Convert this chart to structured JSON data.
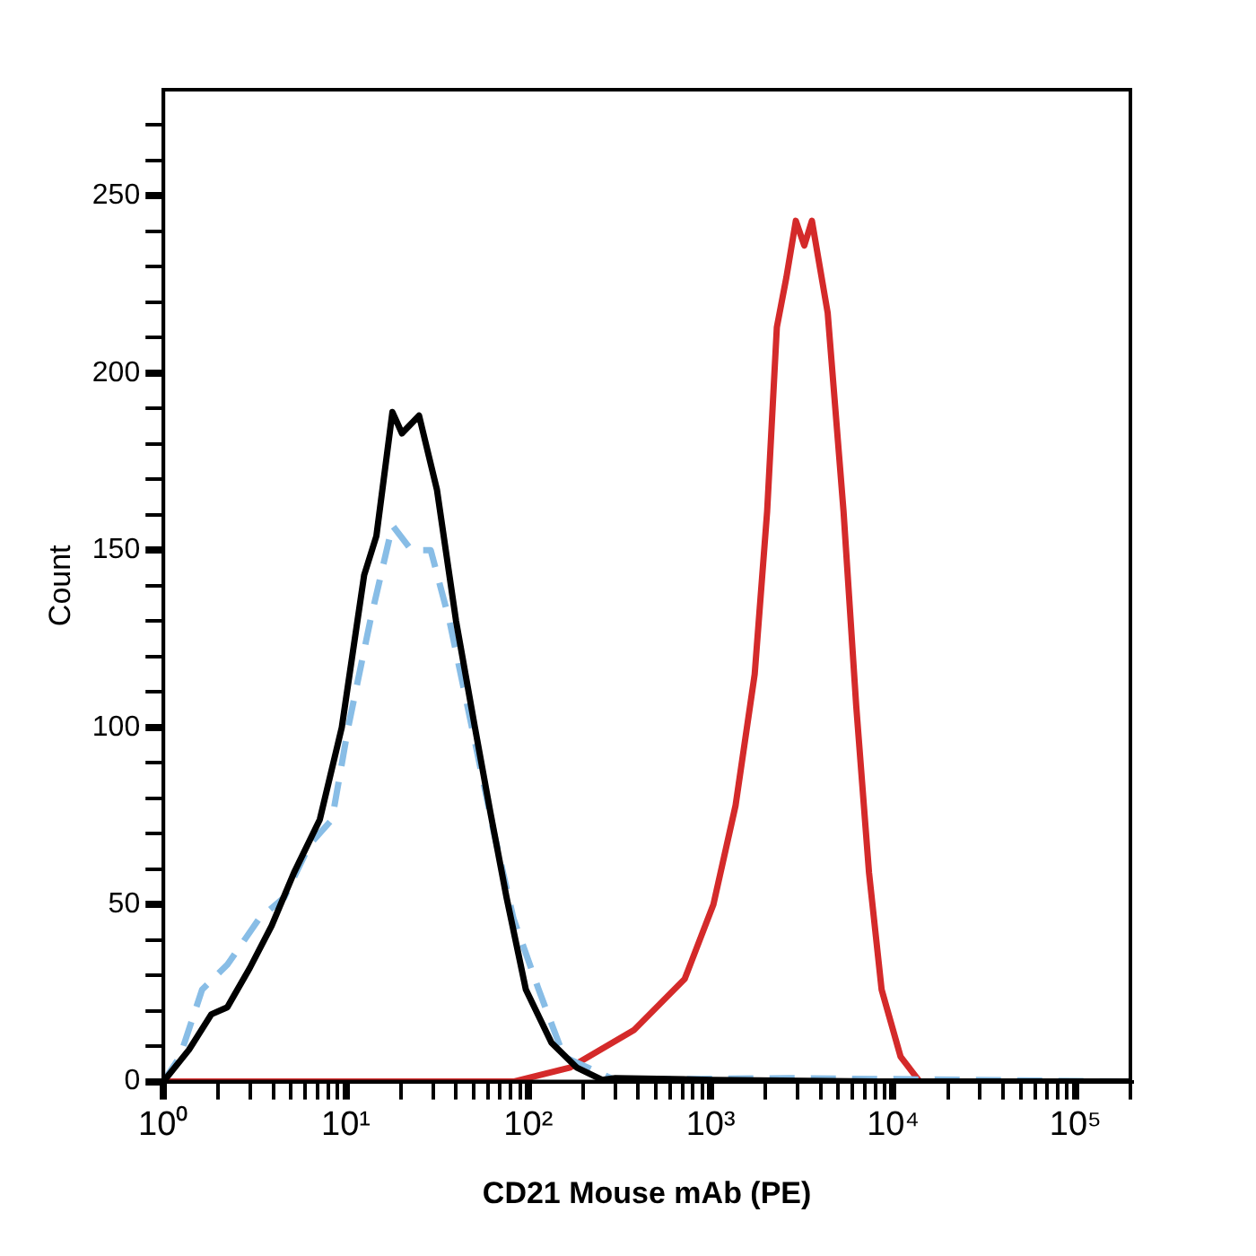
{
  "chart_data": {
    "type": "line",
    "xlabel": "CD21 Mouse mAb (PE)",
    "ylabel": "Count",
    "log": "x",
    "grid": false,
    "legend": false,
    "marker": "none",
    "xlim": [
      1,
      200000
    ],
    "ylim": [
      0,
      280
    ],
    "xticks": [
      {
        "value": 1,
        "label": "10⁰"
      },
      {
        "value": 2,
        "label": null
      },
      {
        "value": 3,
        "label": null
      },
      {
        "value": 4,
        "label": null
      },
      {
        "value": 5,
        "label": null
      },
      {
        "value": 6,
        "label": null
      },
      {
        "value": 7,
        "label": null
      },
      {
        "value": 8,
        "label": null
      },
      {
        "value": 9,
        "label": null
      },
      {
        "value": 10,
        "label": "10¹"
      },
      {
        "value": 20,
        "label": null
      },
      {
        "value": 30,
        "label": null
      },
      {
        "value": 40,
        "label": null
      },
      {
        "value": 50,
        "label": null
      },
      {
        "value": 60,
        "label": null
      },
      {
        "value": 70,
        "label": null
      },
      {
        "value": 80,
        "label": null
      },
      {
        "value": 90,
        "label": null
      },
      {
        "value": 100,
        "label": "10²"
      },
      {
        "value": 200,
        "label": null
      },
      {
        "value": 300,
        "label": null
      },
      {
        "value": 400,
        "label": null
      },
      {
        "value": 500,
        "label": null
      },
      {
        "value": 600,
        "label": null
      },
      {
        "value": 700,
        "label": null
      },
      {
        "value": 800,
        "label": null
      },
      {
        "value": 900,
        "label": null
      },
      {
        "value": 1000,
        "label": "10³"
      },
      {
        "value": 2000,
        "label": null
      },
      {
        "value": 3000,
        "label": null
      },
      {
        "value": 4000,
        "label": null
      },
      {
        "value": 5000,
        "label": null
      },
      {
        "value": 6000,
        "label": null
      },
      {
        "value": 7000,
        "label": null
      },
      {
        "value": 8000,
        "label": null
      },
      {
        "value": 9000,
        "label": null
      },
      {
        "value": 10000,
        "label": "10⁴"
      },
      {
        "value": 20000,
        "label": null
      },
      {
        "value": 30000,
        "label": null
      },
      {
        "value": 40000,
        "label": null
      },
      {
        "value": 50000,
        "label": null
      },
      {
        "value": 60000,
        "label": null
      },
      {
        "value": 70000,
        "label": null
      },
      {
        "value": 80000,
        "label": null
      },
      {
        "value": 90000,
        "label": null
      },
      {
        "value": 100000,
        "label": "10⁵"
      },
      {
        "value": 200000,
        "label": null
      }
    ],
    "yticks": [
      0,
      {
        "value": 10,
        "label": null
      },
      {
        "value": 20,
        "label": null
      },
      {
        "value": 30,
        "label": null
      },
      {
        "value": 40,
        "label": null
      },
      50,
      {
        "value": 60,
        "label": null
      },
      {
        "value": 70,
        "label": null
      },
      {
        "value": 80,
        "label": null
      },
      {
        "value": 90,
        "label": null
      },
      100,
      {
        "value": 110,
        "label": null
      },
      {
        "value": 120,
        "label": null
      },
      {
        "value": 130,
        "label": null
      },
      {
        "value": 140,
        "label": null
      },
      150,
      {
        "value": 160,
        "label": null
      },
      {
        "value": 170,
        "label": null
      },
      {
        "value": 180,
        "label": null
      },
      {
        "value": 190,
        "label": null
      },
      200,
      {
        "value": 210,
        "label": null
      },
      {
        "value": 220,
        "label": null
      },
      {
        "value": 230,
        "label": null
      },
      {
        "value": 240,
        "label": null
      },
      250,
      {
        "value": 260,
        "label": null
      },
      {
        "value": 270,
        "label": null
      }
    ],
    "series": [
      {
        "color": "#000000",
        "line_style": "solid",
        "x": [
          1,
          1.38,
          1.83,
          2.24,
          2.97,
          3.92,
          5.2,
          7.2,
          9.5,
          12.6,
          14.7,
          18,
          20.3,
          25.2,
          31.6,
          40.2,
          51,
          62,
          76,
          97,
          134,
          184,
          254,
          300,
          1000,
          8000,
          200000
        ],
        "values": [
          0,
          9,
          19,
          21,
          32,
          44,
          59,
          74,
          100,
          143,
          154,
          189,
          183,
          188,
          167,
          130,
          100,
          76,
          52,
          26,
          11,
          4,
          0.5,
          1,
          0.5,
          0,
          0
        ]
      },
      {
        "color": "#88bde6",
        "line_style": "dashed",
        "x": [
          1,
          1.23,
          1.63,
          2.24,
          3.35,
          4.6,
          6.35,
          8.4,
          10.3,
          13.6,
          18,
          22.9,
          29.2,
          37,
          51,
          65,
          83,
          114,
          157,
          298,
          2700,
          200000
        ],
        "values": [
          0,
          7,
          26,
          33,
          46,
          52,
          67,
          74,
          100,
          130,
          157,
          150,
          150,
          130,
          96,
          70,
          46,
          26,
          7,
          0.5,
          1,
          0
        ]
      },
      {
        "color": "#d42a2a",
        "line_style": "solid",
        "x": [
          1,
          83,
          170,
          379,
          721,
          1035,
          1370,
          1743,
          2040,
          2306,
          2600,
          2930,
          3260,
          3590,
          4380,
          5350,
          6280,
          7380,
          8650,
          11000,
          14000,
          200000
        ],
        "values": [
          0,
          0,
          4,
          14.5,
          29,
          50,
          78,
          115,
          161,
          213,
          227,
          243,
          236,
          243,
          217,
          161,
          106,
          59,
          26,
          7,
          0,
          0
        ]
      }
    ]
  }
}
